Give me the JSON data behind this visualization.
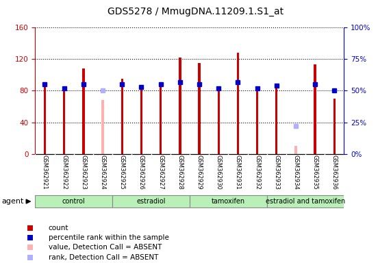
{
  "title": "GDS5278 / MmugDNA.11209.1.S1_at",
  "samples": [
    "GSM362921",
    "GSM362922",
    "GSM362923",
    "GSM362924",
    "GSM362925",
    "GSM362926",
    "GSM362927",
    "GSM362928",
    "GSM362929",
    "GSM362930",
    "GSM362931",
    "GSM362932",
    "GSM362933",
    "GSM362934",
    "GSM362935",
    "GSM362936"
  ],
  "groups": [
    {
      "name": "control",
      "indices": [
        0,
        1,
        2,
        3
      ]
    },
    {
      "name": "estradiol",
      "indices": [
        4,
        5,
        6,
        7
      ]
    },
    {
      "name": "tamoxifen",
      "indices": [
        8,
        9,
        10,
        11
      ]
    },
    {
      "name": "estradiol and tamoxifen",
      "indices": [
        12,
        13,
        14,
        15
      ]
    }
  ],
  "count_values": [
    90,
    83,
    108,
    68,
    95,
    87,
    90,
    122,
    115,
    80,
    128,
    83,
    84,
    10,
    113,
    70
  ],
  "count_absent": [
    false,
    false,
    false,
    true,
    false,
    false,
    false,
    false,
    false,
    false,
    false,
    false,
    false,
    true,
    false,
    false
  ],
  "rank_values": [
    55,
    52,
    55,
    50,
    55,
    53,
    55,
    57,
    55,
    52,
    57,
    52,
    54,
    22,
    55,
    50
  ],
  "rank_absent": [
    false,
    false,
    false,
    true,
    false,
    false,
    false,
    false,
    false,
    false,
    false,
    false,
    false,
    true,
    false,
    false
  ],
  "left_ylim": [
    0,
    160
  ],
  "right_ylim": [
    0,
    100
  ],
  "left_yticks": [
    0,
    40,
    80,
    120,
    160
  ],
  "right_yticks": [
    0,
    25,
    50,
    75,
    100
  ],
  "right_yticklabels": [
    "0%",
    "25%",
    "50%",
    "75%",
    "100%"
  ],
  "count_color": "#cc0000",
  "count_absent_color": "#ffb0b0",
  "rank_color": "#0000cc",
  "rank_absent_color": "#b0b0ff",
  "group_color": "#b8f0b8",
  "group_border_color": "#888888",
  "bg_color": "#ffffff",
  "plot_bg": "#ffffff",
  "title_fontsize": 10,
  "agent_label": "agent",
  "bar_width": 0.12
}
